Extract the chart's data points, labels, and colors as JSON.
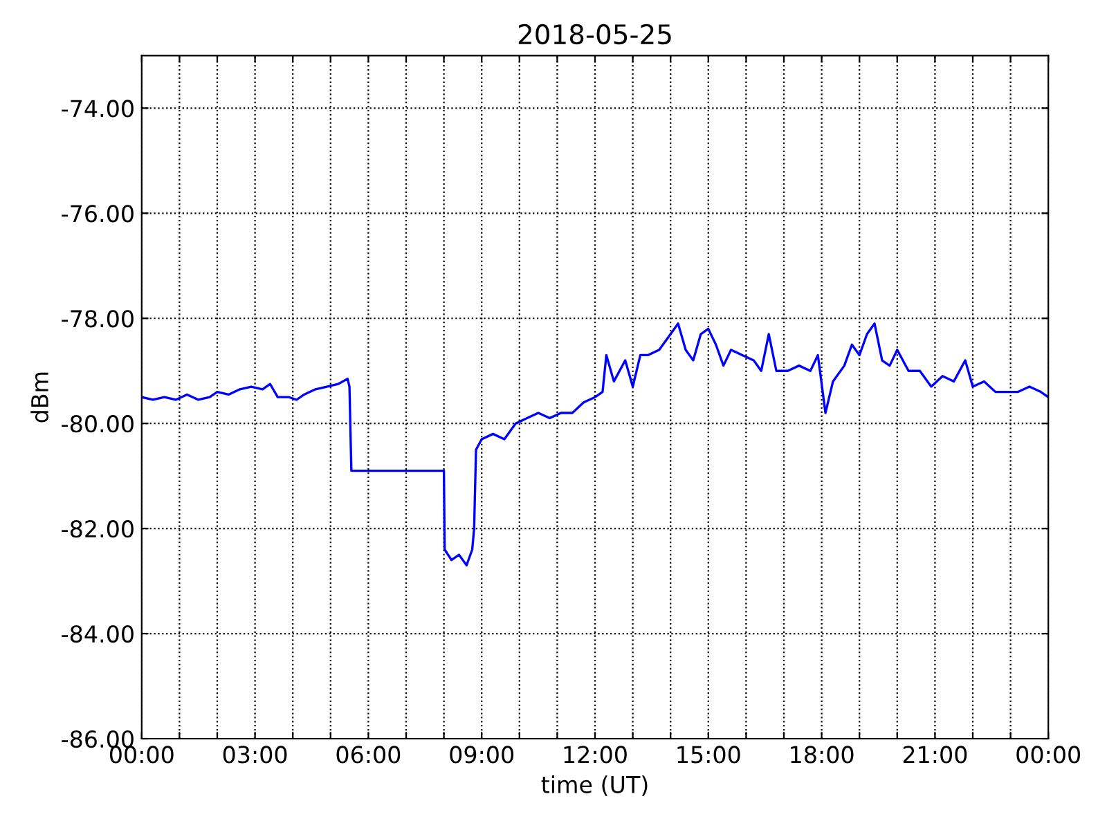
{
  "chart_data": {
    "type": "line",
    "title": "2018-05-25",
    "xlabel": "time (UT)",
    "ylabel": "dBm",
    "series": [
      {
        "color": "#0000ff",
        "x": [
          0.0,
          0.3,
          0.6,
          0.9,
          1.2,
          1.5,
          1.8,
          2.0,
          2.3,
          2.6,
          2.9,
          3.2,
          3.4,
          3.6,
          3.9,
          4.1,
          4.3,
          4.6,
          4.9,
          5.2,
          5.45,
          5.5,
          5.55,
          8.0,
          8.02,
          8.2,
          8.4,
          8.6,
          8.75,
          8.8,
          8.85,
          9.0,
          9.3,
          9.6,
          9.9,
          10.2,
          10.5,
          10.8,
          11.1,
          11.4,
          11.7,
          12.0,
          12.2,
          12.3,
          12.5,
          12.8,
          13.0,
          13.2,
          13.4,
          13.7,
          14.0,
          14.2,
          14.4,
          14.6,
          14.8,
          15.0,
          15.2,
          15.4,
          15.6,
          15.9,
          16.2,
          16.4,
          16.6,
          16.8,
          17.1,
          17.4,
          17.7,
          17.9,
          18.1,
          18.3,
          18.6,
          18.8,
          19.0,
          19.2,
          19.4,
          19.6,
          19.8,
          20.0,
          20.3,
          20.6,
          20.9,
          21.2,
          21.5,
          21.8,
          22.0,
          22.3,
          22.6,
          22.9,
          23.2,
          23.5,
          23.8,
          24.0
        ],
        "values": [
          -79.5,
          -79.55,
          -79.5,
          -79.55,
          -79.45,
          -79.55,
          -79.5,
          -79.4,
          -79.45,
          -79.35,
          -79.3,
          -79.35,
          -79.25,
          -79.5,
          -79.5,
          -79.55,
          -79.45,
          -79.35,
          -79.3,
          -79.25,
          -79.15,
          -79.3,
          -80.9,
          -80.9,
          -82.4,
          -82.6,
          -82.5,
          -82.7,
          -82.4,
          -82.0,
          -80.5,
          -80.3,
          -80.2,
          -80.3,
          -80.0,
          -79.9,
          -79.8,
          -79.9,
          -79.8,
          -79.8,
          -79.6,
          -79.5,
          -79.4,
          -78.7,
          -79.2,
          -78.8,
          -79.3,
          -78.7,
          -78.7,
          -78.6,
          -78.3,
          -78.1,
          -78.6,
          -78.8,
          -78.3,
          -78.2,
          -78.5,
          -78.9,
          -78.6,
          -78.7,
          -78.8,
          -79.0,
          -78.3,
          -79.0,
          -79.0,
          -78.9,
          -79.0,
          -78.7,
          -79.8,
          -79.2,
          -78.9,
          -78.5,
          -78.7,
          -78.3,
          -78.1,
          -78.8,
          -78.9,
          -78.6,
          -79.0,
          -79.0,
          -79.3,
          -79.1,
          -79.2,
          -78.8,
          -79.3,
          -79.2,
          -79.4,
          -79.4,
          -79.4,
          -79.3,
          -79.4,
          -79.5
        ]
      }
    ],
    "xlim": [
      0,
      24
    ],
    "xticks": [
      {
        "value": 0,
        "label": "00:00"
      },
      {
        "value": 1,
        "label": null
      },
      {
        "value": 2,
        "label": null
      },
      {
        "value": 3,
        "label": "03:00"
      },
      {
        "value": 4,
        "label": null
      },
      {
        "value": 5,
        "label": null
      },
      {
        "value": 6,
        "label": "06:00"
      },
      {
        "value": 7,
        "label": null
      },
      {
        "value": 8,
        "label": null
      },
      {
        "value": 9,
        "label": "09:00"
      },
      {
        "value": 10,
        "label": null
      },
      {
        "value": 11,
        "label": null
      },
      {
        "value": 12,
        "label": "12:00"
      },
      {
        "value": 13,
        "label": null
      },
      {
        "value": 14,
        "label": null
      },
      {
        "value": 15,
        "label": "15:00"
      },
      {
        "value": 16,
        "label": null
      },
      {
        "value": 17,
        "label": null
      },
      {
        "value": 18,
        "label": "18:00"
      },
      {
        "value": 19,
        "label": null
      },
      {
        "value": 20,
        "label": null
      },
      {
        "value": 21,
        "label": "21:00"
      },
      {
        "value": 22,
        "label": null
      },
      {
        "value": 23,
        "label": null
      },
      {
        "value": 24,
        "label": "00:00"
      }
    ],
    "ylim": [
      -86,
      -73
    ],
    "yticks": [
      {
        "value": -86,
        "label": "-86.00"
      },
      {
        "value": -84,
        "label": "-84.00"
      },
      {
        "value": -82,
        "label": "-82.00"
      },
      {
        "value": -80,
        "label": "-80.00"
      },
      {
        "value": -78,
        "label": "-78.00"
      },
      {
        "value": -76,
        "label": "-76.00"
      },
      {
        "value": -74,
        "label": "-74.00"
      }
    ],
    "grid": true,
    "line_style": "solid"
  }
}
